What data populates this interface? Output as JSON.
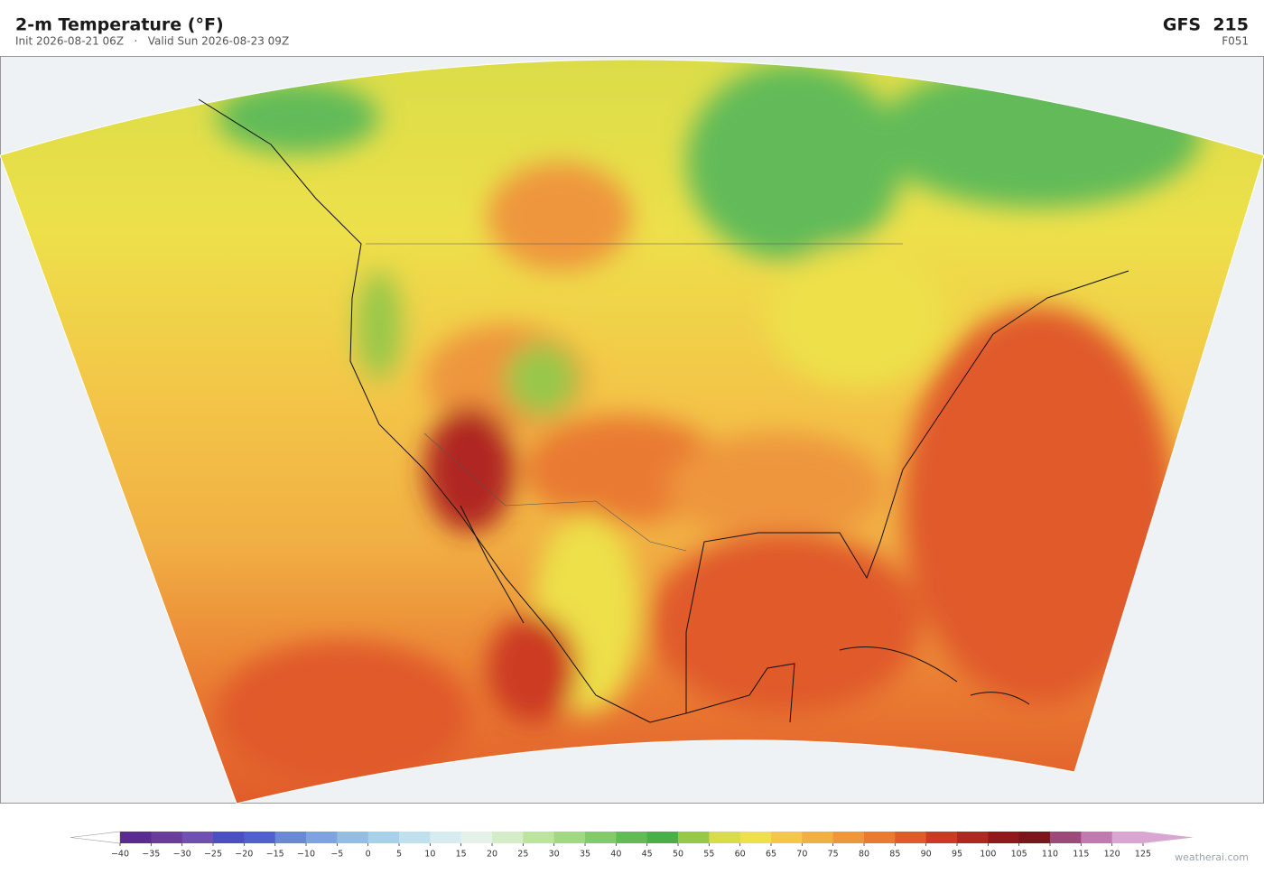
{
  "header": {
    "title": "2-m Temperature  (°F)",
    "subtitle": "Init 2026-08-21 06Z   ·   Valid Sun 2026-08-23 09Z",
    "model": "GFS  215",
    "forecast_hour": "F051"
  },
  "colorbar": {
    "ticks": [
      "−40",
      "−35",
      "−30",
      "−25",
      "−20",
      "−15",
      "−10",
      "−5",
      "0",
      "5",
      "10",
      "15",
      "20",
      "25",
      "30",
      "35",
      "40",
      "45",
      "50",
      "55",
      "60",
      "65",
      "70",
      "75",
      "80",
      "85",
      "90",
      "95",
      "100",
      "105",
      "110",
      "115",
      "120",
      "125"
    ],
    "colors": [
      "#5b2c8f",
      "#6a3d9a",
      "#7050b0",
      "#4b4fc0",
      "#5060cc",
      "#6a88d4",
      "#7fa3dc",
      "#94bde0",
      "#a8d0e8",
      "#c0e0ee",
      "#d6ecf0",
      "#e4f2ea",
      "#d4ecc8",
      "#bde3a0",
      "#a2d884",
      "#84c96a",
      "#62bb58",
      "#4aae4a",
      "#98c84a",
      "#d8dc48",
      "#ede04a",
      "#f3c748",
      "#f1b044",
      "#ee963c",
      "#e97a32",
      "#e05a2a",
      "#cc3a24",
      "#b02620",
      "#8e1a1c",
      "#7a161c",
      "#9c4a7a",
      "#c07ab0",
      "#d8a6d0"
    ],
    "under_color": "#ffffff",
    "over_color": "#d8a6d0"
  },
  "footer": {
    "watermark": "weatherai.com"
  }
}
